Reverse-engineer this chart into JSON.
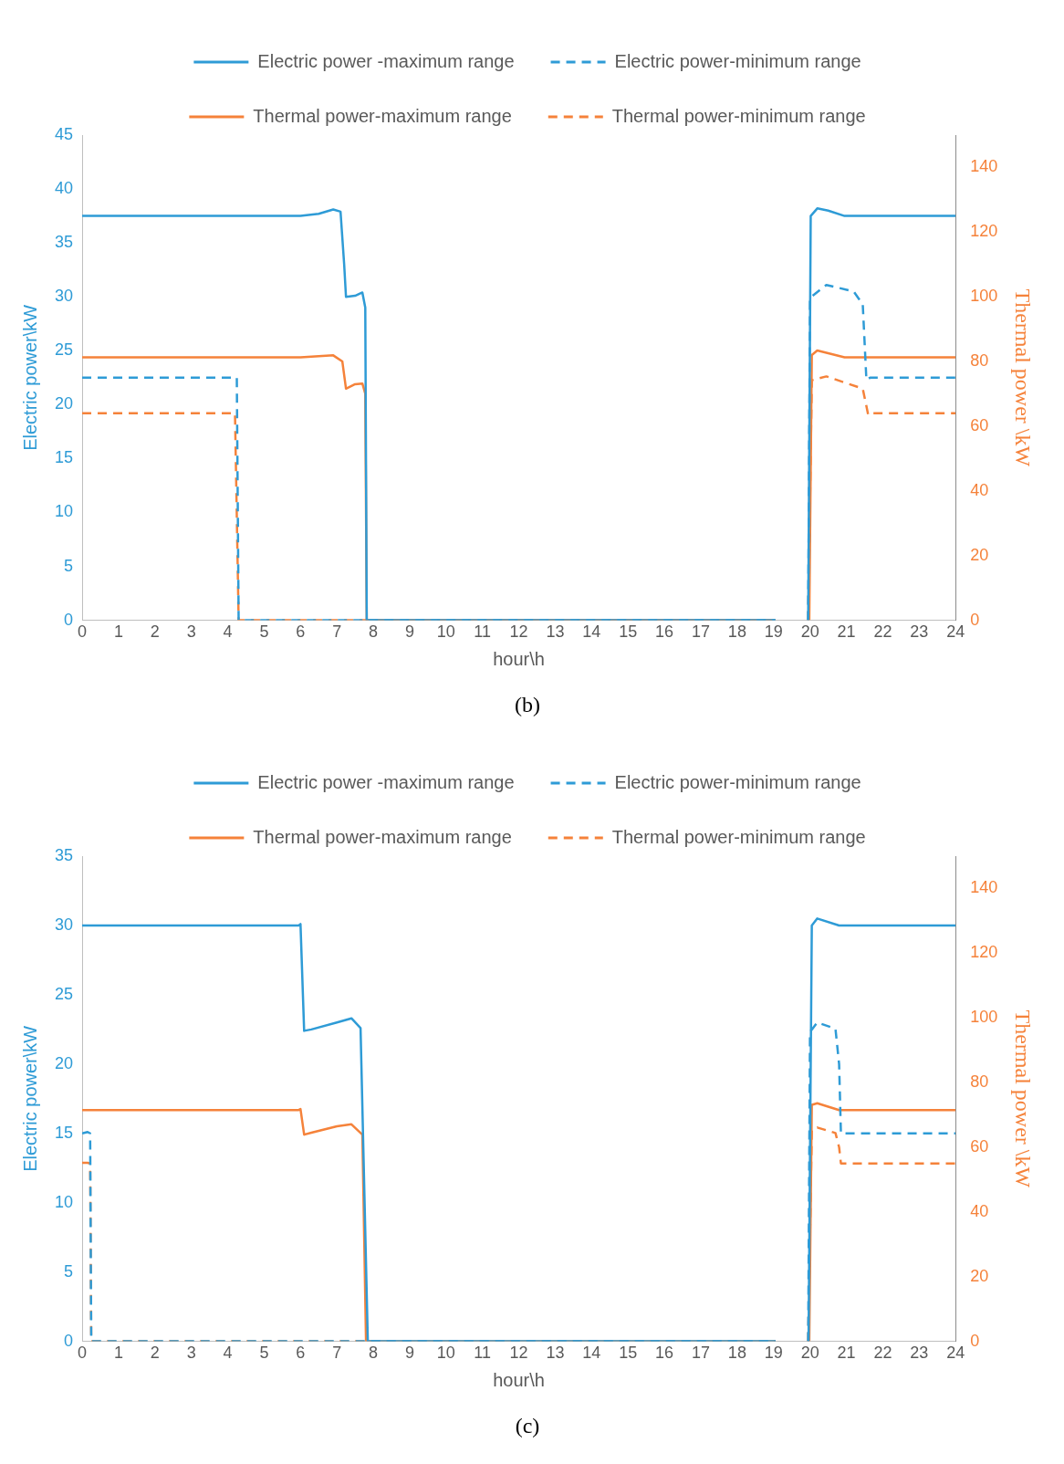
{
  "chart_data": [
    {
      "type": "line",
      "title": "(b)",
      "xlabel": "hour\\h",
      "ylabel": "Electric power\\kW",
      "y2label": "Thermal power \\kW",
      "xlim": [
        0,
        24
      ],
      "xticks": [
        0,
        1,
        2,
        3,
        4,
        5,
        6,
        7,
        8,
        9,
        10,
        11,
        12,
        13,
        14,
        15,
        16,
        17,
        18,
        19,
        20,
        21,
        22,
        23,
        24
      ],
      "ylim": [
        0,
        45
      ],
      "yticks": [
        0,
        5,
        10,
        15,
        20,
        25,
        30,
        35,
        40,
        45
      ],
      "y2lim": [
        0,
        150
      ],
      "y2ticks": [
        0,
        20,
        40,
        60,
        80,
        100,
        120,
        140
      ],
      "legend": "top",
      "grid": false,
      "marker": "none",
      "series": [
        {
          "name": "Electric power -maximum range",
          "color": "#2e9bd6",
          "line_style": "solid",
          "x": [
            0,
            6,
            6.5,
            6.9,
            7.1,
            7.2,
            7.25,
            7.5,
            7.7,
            7.78,
            7.82,
            19.05,
            19.5,
            19.95,
            20.02,
            20.2,
            20.5,
            20.95,
            24
          ],
          "values": [
            37.5,
            37.5,
            37.7,
            38.1,
            37.9,
            33,
            30.0,
            30.1,
            30.4,
            29,
            0,
            0,
            null,
            0,
            37.5,
            38.2,
            38.0,
            37.5,
            37.5
          ]
        },
        {
          "name": "Electric power-minimum range",
          "color": "#2e9bd6",
          "line_style": "dashed",
          "x": [
            0,
            4.25,
            4.3,
            19.05,
            19.5,
            19.95,
            20.0,
            20.45,
            21.2,
            21.45,
            21.55,
            21.65,
            24
          ],
          "values": [
            22.5,
            22.5,
            0,
            0,
            null,
            0,
            29.9,
            31.1,
            30.5,
            29.3,
            22.3,
            22.5,
            22.5
          ]
        },
        {
          "name": "Thermal power-maximum range",
          "color": "#f5823a",
          "line_style": "solid",
          "axis": "y2",
          "x": [
            0,
            6,
            6.9,
            7.15,
            7.25,
            7.5,
            7.7,
            7.78,
            7.82,
            19.05,
            19.5,
            19.98,
            20.05,
            20.2,
            20.95,
            24
          ],
          "values": [
            81.3,
            81.3,
            81.9,
            80,
            71.6,
            73.0,
            73.2,
            70,
            0,
            0,
            null,
            0,
            82,
            83.4,
            81.3,
            81.3
          ]
        },
        {
          "name": "Thermal power-minimum range",
          "color": "#f5823a",
          "line_style": "dashed",
          "axis": "y2",
          "x": [
            0,
            4.2,
            4.3,
            19.05,
            19.5,
            19.95,
            20.05,
            20.45,
            21.45,
            21.6,
            21.7,
            24
          ],
          "values": [
            64,
            64,
            0,
            0,
            null,
            0,
            74.2,
            75.4,
            71.6,
            63.5,
            64,
            64
          ]
        }
      ]
    },
    {
      "type": "line",
      "title": "(c)",
      "xlabel": "hour\\h",
      "ylabel": "Electric power\\kW",
      "y2label": "Thermal power \\kW",
      "xlim": [
        0,
        24
      ],
      "xticks": [
        0,
        1,
        2,
        3,
        4,
        5,
        6,
        7,
        8,
        9,
        10,
        11,
        12,
        13,
        14,
        15,
        16,
        17,
        18,
        19,
        20,
        21,
        22,
        23,
        24
      ],
      "ylim": [
        0,
        35
      ],
      "yticks": [
        0,
        5,
        10,
        15,
        20,
        25,
        30,
        35
      ],
      "y2lim": [
        0,
        150
      ],
      "y2ticks": [
        0,
        20,
        40,
        60,
        80,
        100,
        120,
        140
      ],
      "legend": "top",
      "grid": false,
      "marker": "none",
      "series": [
        {
          "name": "Electric power -maximum range",
          "color": "#2e9bd6",
          "line_style": "solid",
          "x": [
            0,
            5.95,
            6.0,
            6.1,
            6.3,
            7.0,
            7.4,
            7.65,
            7.85,
            19.05,
            19.5,
            19.96,
            20.05,
            20.2,
            20.8,
            24
          ],
          "values": [
            30,
            30,
            30.1,
            22.4,
            22.5,
            23.0,
            23.3,
            22.6,
            0,
            0,
            null,
            0,
            30,
            30.5,
            30,
            30
          ]
        },
        {
          "name": "Electric power-minimum range",
          "color": "#2e9bd6",
          "line_style": "dashed",
          "x": [
            0,
            0.15,
            0.22,
            0.25,
            19.05,
            19.5,
            19.95,
            20.0,
            20.2,
            20.7,
            20.8,
            20.85,
            24
          ],
          "values": [
            15,
            15.1,
            15,
            0,
            0,
            null,
            0,
            22.3,
            23.0,
            22.55,
            20,
            15,
            15
          ]
        },
        {
          "name": "Thermal power-maximum range",
          "color": "#f5823a",
          "line_style": "solid",
          "axis": "y2",
          "x": [
            0,
            5.95,
            6.0,
            6.1,
            6.3,
            7.0,
            7.4,
            7.7,
            7.8,
            19.05,
            19.5,
            19.98,
            20.05,
            20.2,
            20.8,
            24
          ],
          "values": [
            71.5,
            71.5,
            71.8,
            63.9,
            64.5,
            66.5,
            67.1,
            63.9,
            0,
            0,
            null,
            0,
            73.1,
            73.6,
            71.5,
            71.5
          ]
        },
        {
          "name": "Thermal power-minimum range",
          "color": "#f5823a",
          "line_style": "dashed",
          "axis": "y2",
          "x": [
            0,
            0.15,
            0.22,
            0.25,
            19.05,
            19.5,
            19.95,
            20.05,
            20.2,
            20.7,
            20.8,
            20.85,
            24
          ],
          "values": [
            55.2,
            55.2,
            55,
            0,
            0,
            null,
            0,
            65.4,
            66.1,
            64.4,
            60,
            55,
            55
          ]
        }
      ]
    }
  ]
}
